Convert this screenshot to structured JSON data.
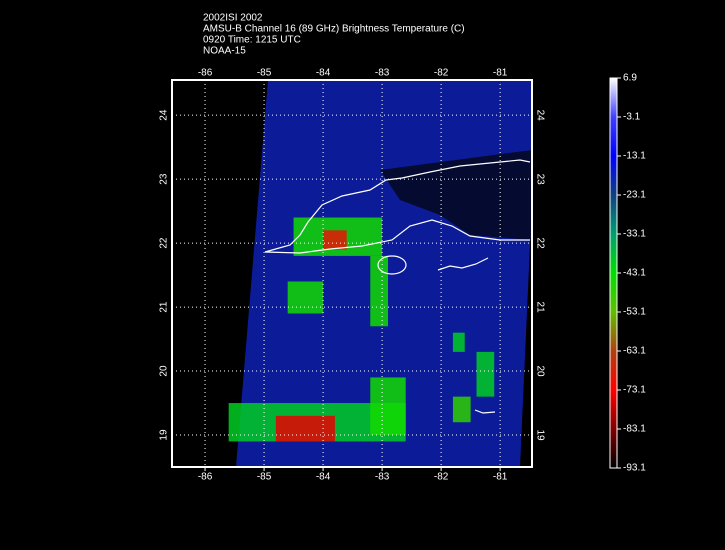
{
  "header": {
    "lines": [
      "2002ISI 2002",
      "AMSU-B Channel 16 (89 GHz) Brightness Temperature (C)",
      "0920 Time: 1215 UTC",
      "NOAA-15"
    ]
  },
  "map": {
    "lonlim": [
      -86.56,
      -80.46
    ],
    "latlim": [
      18.5,
      24.55
    ],
    "lon_ticks": [
      -86,
      -85,
      -84,
      -83,
      -82,
      -81
    ],
    "lat_ticks": [
      19,
      20,
      21,
      22,
      23,
      24
    ],
    "grid": true,
    "patches": [
      {
        "lon": [
          -84.5,
          -83.0
        ],
        "lat": [
          21.8,
          22.4
        ],
        "value": -45
      },
      {
        "lon": [
          -84.0,
          -83.6
        ],
        "lat": [
          21.9,
          22.2
        ],
        "value": -70
      },
      {
        "lon": [
          -84.6,
          -84.0
        ],
        "lat": [
          20.9,
          21.4
        ],
        "value": -45
      },
      {
        "lon": [
          -83.2,
          -82.9
        ],
        "lat": [
          20.7,
          21.8
        ],
        "value": -45
      },
      {
        "lon": [
          -85.6,
          -82.6
        ],
        "lat": [
          18.9,
          19.5
        ],
        "value": -40
      },
      {
        "lon": [
          -84.8,
          -83.8
        ],
        "lat": [
          18.9,
          19.3
        ],
        "value": -75
      },
      {
        "lon": [
          -83.2,
          -82.6
        ],
        "lat": [
          19.0,
          19.9
        ],
        "value": -45
      },
      {
        "lon": [
          -81.8,
          -81.5
        ],
        "lat": [
          19.2,
          19.6
        ],
        "value": -48
      },
      {
        "lon": [
          -81.4,
          -81.1
        ],
        "lat": [
          19.6,
          20.3
        ],
        "value": -40
      },
      {
        "lon": [
          -81.8,
          -81.6
        ],
        "lat": [
          20.3,
          20.6
        ],
        "value": -40
      }
    ]
  },
  "colorbar": {
    "lim": [
      -93.1,
      6.9
    ],
    "ticks": [
      6.9,
      -3.1,
      -13.1,
      -23.1,
      -33.1,
      -43.1,
      -53.1,
      -63.1,
      -73.1,
      -83.1,
      -93.1
    ],
    "colormap": [
      "#000000",
      "#800000",
      "#ff0000",
      "#b04010",
      "#60c000",
      "#00e000",
      "#00a070",
      "#104080",
      "#0000ff",
      "#4040ff",
      "#ffffff"
    ]
  }
}
